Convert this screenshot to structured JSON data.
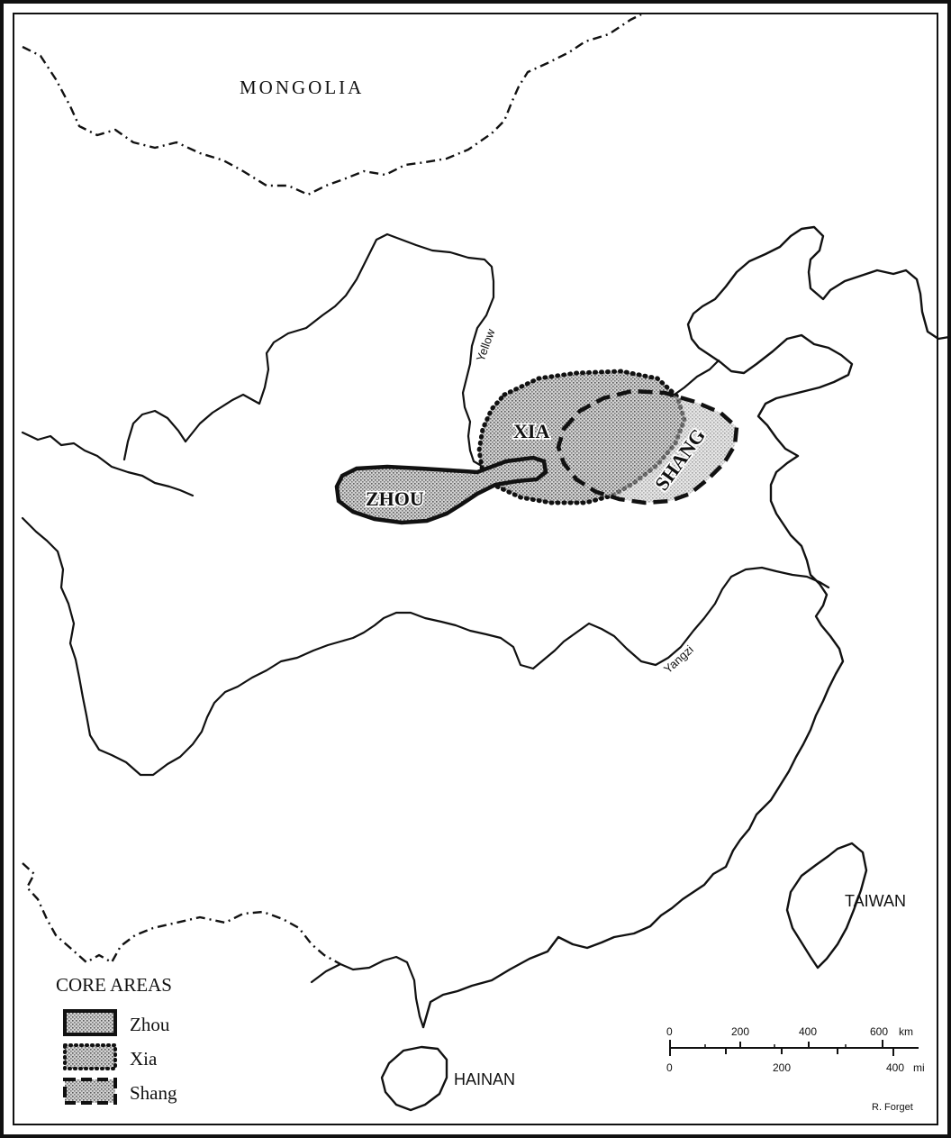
{
  "labels": {
    "mongolia": "MONGOLIA",
    "taiwan": "TAIWAN",
    "hainan": "HAINAN",
    "zhou": "ZHOU",
    "xia": "XIA",
    "shang": "SHANG",
    "river_yellow": "Yellow",
    "river_yangzi": "Yangzi"
  },
  "legend": {
    "title": "CORE AREAS",
    "items": [
      {
        "label": "Zhou",
        "line_style": "solid"
      },
      {
        "label": "Xia",
        "line_style": "dotted"
      },
      {
        "label": "Shang",
        "line_style": "dashed"
      }
    ]
  },
  "scale": {
    "km_ticks": [
      "0",
      "200",
      "400",
      "600"
    ],
    "km_unit": "km",
    "mi_ticks": [
      "0",
      "200",
      "400"
    ],
    "mi_unit": "mi"
  },
  "credit": "R. Forget",
  "colors": {
    "ink": "#111111",
    "paper": "#ffffff",
    "stipple": "#9a9a9a"
  }
}
